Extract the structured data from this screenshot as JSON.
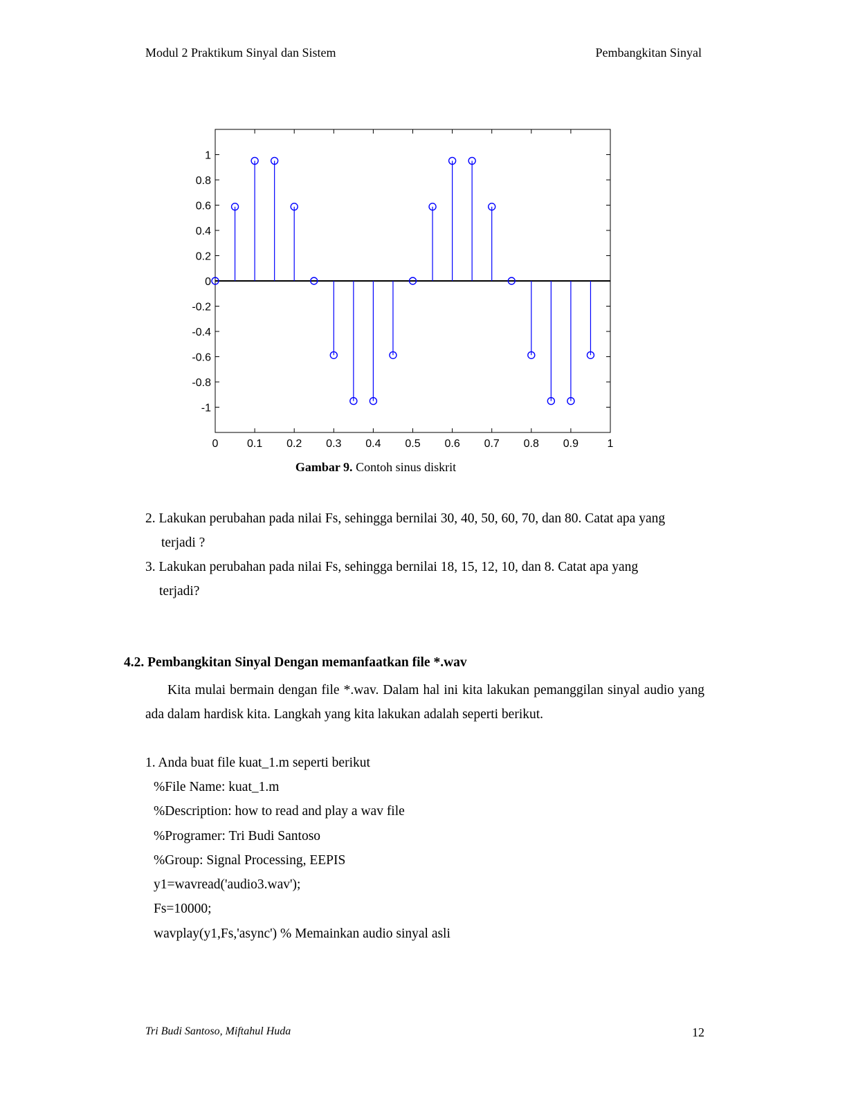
{
  "header": {
    "left": "Modul 2 Praktikum Sinyal dan Sistem",
    "right": "Pembangkitan Sinyal"
  },
  "figure": {
    "caption_bold": "Gambar 9.",
    "caption_text": " Contoh sinus diskrit",
    "chart_data": {
      "type": "stem",
      "x": [
        0,
        0.05,
        0.1,
        0.15,
        0.2,
        0.25,
        0.3,
        0.35,
        0.4,
        0.45,
        0.5,
        0.55,
        0.6,
        0.65,
        0.7,
        0.75,
        0.8,
        0.85,
        0.9,
        0.95
      ],
      "y": [
        0,
        0.5878,
        0.9511,
        0.9511,
        0.5878,
        0,
        -0.5878,
        -0.9511,
        -0.9511,
        -0.5878,
        0,
        0.5878,
        0.9511,
        0.9511,
        0.5878,
        0,
        -0.5878,
        -0.9511,
        -0.9511,
        -0.5878
      ],
      "xlim": [
        0,
        1
      ],
      "ylim": [
        -1.2,
        1.2
      ],
      "xticks": [
        0,
        0.1,
        0.2,
        0.3,
        0.4,
        0.5,
        0.6,
        0.7,
        0.8,
        0.9,
        1
      ],
      "xtick_labels": [
        "0",
        "0.1",
        "0.2",
        "0.3",
        "0.4",
        "0.5",
        "0.6",
        "0.7",
        "0.8",
        "0.9",
        "1"
      ],
      "yticks": [
        1,
        0.8,
        0.6,
        0.4,
        0.2,
        0,
        -0.2,
        -0.4,
        -0.6,
        -0.8,
        -1
      ],
      "ytick_labels": [
        "1",
        "0.8",
        "0.6",
        "0.4",
        "0.2",
        "0",
        "-0.2",
        "-0.4",
        "-0.6",
        "-0.8",
        "-1"
      ],
      "marker_color": "#0000ff",
      "grid": false
    }
  },
  "items": [
    {
      "line1": "2. Lakukan perubahan pada nilai Fs, sehingga bernilai 30, 40, 50, 60, 70, dan 80. Catat apa yang",
      "line2": "terjadi ?"
    },
    {
      "line1": "3. Lakukan perubahan pada nilai Fs, sehingga bernilai 18, 15, 12, 10, dan 8. Catat apa yang",
      "line2": "terjadi?"
    }
  ],
  "section": {
    "title": "4.2. Pembangkitan Sinyal Dengan memanfaatkan file *.wav",
    "paragraph": "Kita mulai bermain dengan file *.wav. Dalam hal ini kita lakukan pemanggilan sinyal audio yang ada dalam hardisk kita. Langkah yang kita lakukan adalah seperti berikut.",
    "step_intro": "1. Anda buat file kuat_1.m seperti berikut",
    "code_lines": [
      "%File Name: kuat_1.m",
      "%Description: how to read and play a wav file",
      "%Programer: Tri Budi Santoso",
      "%Group: Signal Processing, EEPIS",
      "y1=wavread('audio3.wav');",
      "Fs=10000;",
      "wavplay(y1,Fs,'async') % Memainkan audio sinyal asli"
    ]
  },
  "footer": {
    "authors": "Tri Budi Santoso, Miftahul Huda",
    "page_number": "12"
  }
}
